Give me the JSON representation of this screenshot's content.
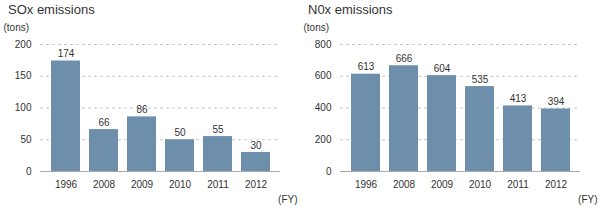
{
  "chart_data": [
    {
      "type": "bar",
      "title": "SOx emissions",
      "ylabel": "(tons)",
      "xlabel": "(FY)",
      "categories": [
        "1996",
        "2008",
        "2009",
        "2010",
        "2011",
        "2012"
      ],
      "values": [
        174,
        66,
        86,
        50,
        55,
        30
      ],
      "color": "#6e8fab",
      "ylim": [
        0,
        200
      ],
      "yticks": [
        0,
        50,
        100,
        150,
        200
      ],
      "grid": true,
      "data_labels": true
    },
    {
      "type": "bar",
      "title": "N0x emissions",
      "ylabel": "(tons)",
      "xlabel": "(FY)",
      "categories": [
        "1996",
        "2008",
        "2009",
        "2010",
        "2011",
        "2012"
      ],
      "values": [
        613,
        666,
        604,
        535,
        413,
        394
      ],
      "color": "#6e8fab",
      "ylim": [
        0,
        800
      ],
      "yticks": [
        0,
        200,
        400,
        600,
        800
      ],
      "grid": true,
      "data_labels": true
    }
  ]
}
